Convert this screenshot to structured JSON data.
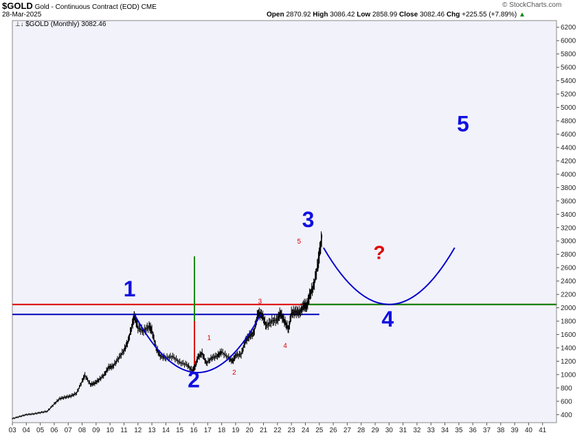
{
  "header": {
    "symbol": "$GOLD",
    "description": "Gold - Continuous Contract (EOD)",
    "exchange": "CME",
    "date": "28-Mar-2025",
    "open_label": "Open",
    "open": "2870.92",
    "high_label": "High",
    "high": "3086.42",
    "low_label": "Low",
    "low": "2858.99",
    "close_label": "Close",
    "close": "3082.46",
    "chg_label": "Chg",
    "chg": "+225.55 (+7.89%)",
    "watermark": "© StockCharts.com",
    "legend": "$GOLD (Monthly) 3082.46"
  },
  "colors": {
    "price": "#000000",
    "arc": "#0000cc",
    "red": "#dd0000",
    "green": "#008800",
    "blue_line": "#0000bb",
    "wave_big": "#1010e0",
    "wave_small": "#dd0000",
    "plot_bg": "#f2f2fb"
  },
  "chart_data": {
    "type": "line",
    "title": "$GOLD (Monthly) 3082.46",
    "x_axis": {
      "ticks": [
        "03",
        "04",
        "05",
        "06",
        "07",
        "08",
        "09",
        "10",
        "11",
        "12",
        "13",
        "14",
        "15",
        "16",
        "17",
        "18",
        "19",
        "20",
        "21",
        "22",
        "23",
        "24",
        "25",
        "26",
        "27",
        "28",
        "29",
        "30",
        "31",
        "32",
        "33",
        "34",
        "35",
        "36",
        "37",
        "38",
        "39",
        "40",
        "41"
      ],
      "range": [
        2003,
        2042
      ]
    },
    "y_axis": {
      "ticks": [
        400,
        600,
        800,
        1000,
        1200,
        1400,
        1600,
        1800,
        2000,
        2200,
        2400,
        2600,
        2800,
        3000,
        3200,
        3400,
        3600,
        3800,
        4000,
        4200,
        4400,
        4600,
        4800,
        5000,
        5200,
        5400,
        5600,
        5800,
        6000,
        6200
      ],
      "range": [
        280,
        6300
      ],
      "side": "right"
    },
    "grid": false,
    "series": [
      {
        "x": [
          2003.0,
          2003.5,
          2004.0,
          2004.5,
          2005.0,
          2005.5,
          2006.0,
          2006.4,
          2006.8,
          2007.2,
          2007.6,
          2008.0,
          2008.2,
          2008.6,
          2008.9,
          2009.2,
          2009.6,
          2009.9,
          2010.2,
          2010.6,
          2011.0,
          2011.3,
          2011.6,
          2011.75,
          2012.0,
          2012.4,
          2012.8,
          2013.0,
          2013.3,
          2013.6,
          2014.0,
          2014.5,
          2015.0,
          2015.5,
          2015.9,
          2016.1,
          2016.3,
          2016.6,
          2016.9,
          2017.3,
          2017.7,
          2018.0,
          2018.5,
          2018.8,
          2019.0,
          2019.4,
          2019.7,
          2020.0,
          2020.3,
          2020.6,
          2020.9,
          2021.2,
          2021.6,
          2022.0,
          2022.2,
          2022.5,
          2022.8,
          2023.0,
          2023.3,
          2023.6,
          2023.9,
          2024.1,
          2024.3,
          2024.6,
          2024.9,
          2025.0,
          2025.2
        ],
        "y": [
          340,
          370,
          400,
          410,
          430,
          450,
          560,
          640,
          660,
          680,
          720,
          900,
          990,
          850,
          870,
          920,
          1000,
          1110,
          1120,
          1240,
          1360,
          1500,
          1750,
          1880,
          1700,
          1650,
          1720,
          1660,
          1400,
          1280,
          1250,
          1270,
          1180,
          1150,
          1060,
          1120,
          1260,
          1320,
          1170,
          1250,
          1280,
          1340,
          1250,
          1200,
          1290,
          1300,
          1500,
          1580,
          1620,
          1920,
          1890,
          1730,
          1800,
          1820,
          1920,
          1800,
          1680,
          1920,
          1940,
          1930,
          2040,
          2020,
          2180,
          2330,
          2650,
          2800,
          3082
        ]
      }
    ],
    "horizontal_lines": [
      {
        "y": 2050,
        "color": "red"
      },
      {
        "y": 1900,
        "color": "blue",
        "x_end": 2025.0
      },
      {
        "y": 2050,
        "color": "green",
        "x_start": 2024.2
      }
    ],
    "vertical_lines": [
      {
        "x": 2016.05,
        "y_from": 1060,
        "y_to": 2770,
        "color": "green"
      },
      {
        "x": 2016.05,
        "y_from": 1060,
        "y_to": 1800,
        "color": "red"
      }
    ],
    "arcs": [
      {
        "x_start": 2011.75,
        "x_end": 2020.8,
        "y_edge": 1900,
        "y_bottom": 1030
      },
      {
        "x_start": 2025.3,
        "x_end": 2034.7,
        "y_edge": 2900,
        "y_bottom": 2050
      }
    ],
    "annotations": [
      {
        "text": "1",
        "x": 2011.4,
        "y": 2170,
        "style": "big"
      },
      {
        "text": "2",
        "x": 2016.0,
        "y": 810,
        "style": "big"
      },
      {
        "text": "3",
        "x": 2024.2,
        "y": 3210,
        "style": "big"
      },
      {
        "text": "4",
        "x": 2029.9,
        "y": 1720,
        "style": "big"
      },
      {
        "text": "5",
        "x": 2035.3,
        "y": 4640,
        "style": "big"
      },
      {
        "text": "?",
        "x": 2029.3,
        "y": 2730,
        "style": "big-red"
      },
      {
        "text": "1",
        "x": 2017.1,
        "y": 1520,
        "style": "small"
      },
      {
        "text": "2",
        "x": 2018.9,
        "y": 1000,
        "style": "small"
      },
      {
        "text": "3",
        "x": 2020.75,
        "y": 2060,
        "style": "small"
      },
      {
        "text": "4",
        "x": 2022.55,
        "y": 1400,
        "style": "small"
      },
      {
        "text": "5",
        "x": 2023.55,
        "y": 2960,
        "style": "small"
      }
    ]
  }
}
